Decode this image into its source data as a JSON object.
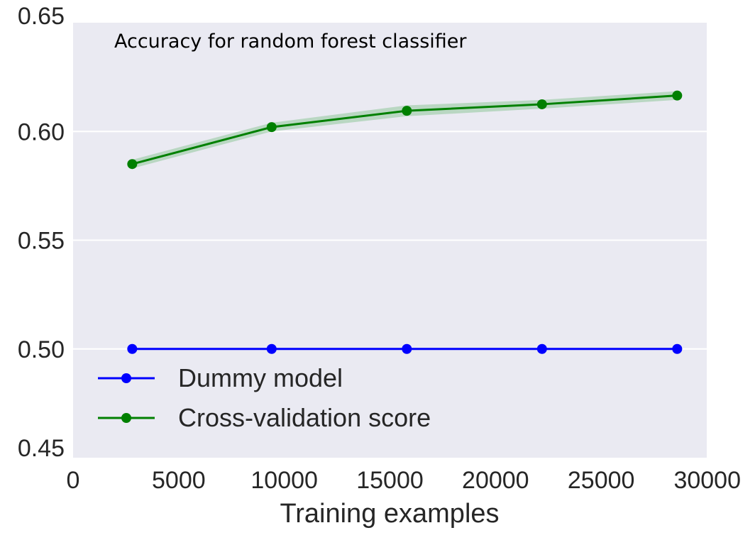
{
  "chart_data": {
    "type": "line",
    "title": "Accuracy for random forest classifier",
    "xlabel": "Training examples",
    "ylabel": "",
    "xlim": [
      0,
      30000
    ],
    "ylim": [
      0.45,
      0.65
    ],
    "xticks": [
      0,
      5000,
      10000,
      15000,
      20000,
      25000,
      30000
    ],
    "xtick_labels": [
      "0",
      "5000",
      "10000",
      "15000",
      "20000",
      "25000",
      "30000"
    ],
    "yticks": [
      0.45,
      0.5,
      0.55,
      0.6,
      0.65
    ],
    "ytick_labels": [
      "0.45",
      "0.50",
      "0.55",
      "0.60",
      "0.65"
    ],
    "grid": true,
    "legend_position": "lower-left",
    "series": [
      {
        "name": "Dummy model",
        "color": "#0000ff",
        "marker": "circle",
        "x": [
          2800,
          9400,
          15800,
          22200,
          28600
        ],
        "y": [
          0.5,
          0.5,
          0.5,
          0.5,
          0.5
        ]
      },
      {
        "name": "Cross-validation score",
        "color": "#008000",
        "band_color": "#8fc79b",
        "marker": "circle",
        "x": [
          2800,
          9400,
          15800,
          22200,
          28600
        ],
        "y": [
          0.585,
          0.602,
          0.6095,
          0.6125,
          0.6165
        ],
        "band_lower": [
          0.583,
          0.6,
          0.607,
          0.6105,
          0.6145
        ],
        "band_upper": [
          0.587,
          0.604,
          0.612,
          0.6145,
          0.6185
        ]
      }
    ]
  }
}
